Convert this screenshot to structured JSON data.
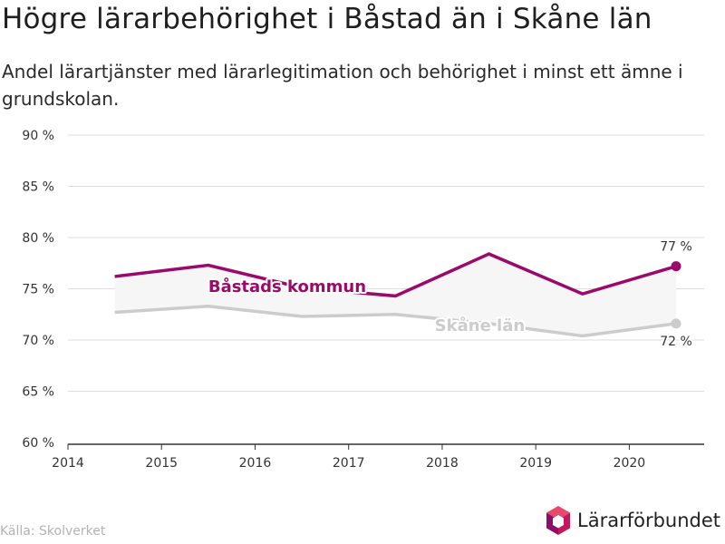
{
  "title": "Högre lärarbehörighet i Båstad än i Skåne län",
  "subtitle": "Andel lärartjänster med lärarlegitimation och behörighet i minst ett ämne i grundskolan.",
  "source": "Källa: Skolverket",
  "logo": {
    "text": "Lärarförbundet",
    "icon": "hexagon-logo-icon"
  },
  "colors": {
    "bastad": "#9b0a6a",
    "skane": "#cccccc",
    "band": "#f6f6f6",
    "grid": "#dddddd",
    "axis": "#333333"
  },
  "chart_data": {
    "type": "line",
    "title": "Högre lärarbehörighet i Båstad än i Skåne län",
    "subtitle": "Andel lärartjänster med lärarlegitimation och behörighet i minst ett ämne i grundskolan.",
    "xlabel": "",
    "ylabel": "",
    "x_ticks": [
      "2014",
      "2015",
      "2016",
      "2017",
      "2018",
      "2019",
      "2020"
    ],
    "y_ticks": [
      "90 %",
      "85 %",
      "80 %",
      "75 %",
      "70 %",
      "65 %",
      "60 %"
    ],
    "xlim": [
      2014,
      2020.8
    ],
    "ylim": [
      60,
      90
    ],
    "grid": true,
    "legend": "inline labels",
    "series": [
      {
        "name": "Båstads kommun",
        "x": [
          2014.5,
          2015.5,
          2016.5,
          2017.5,
          2018.5,
          2019.5,
          2020.5
        ],
        "values": [
          76.2,
          77.3,
          75.1,
          74.3,
          78.4,
          74.5,
          77.2
        ],
        "end_label": "77 %"
      },
      {
        "name": "Skåne län",
        "x": [
          2014.5,
          2015.5,
          2016.5,
          2017.5,
          2018.5,
          2019.5,
          2020.5
        ],
        "values": [
          72.7,
          73.3,
          72.3,
          72.5,
          71.6,
          70.4,
          71.6
        ],
        "end_label": "72 %"
      }
    ]
  }
}
